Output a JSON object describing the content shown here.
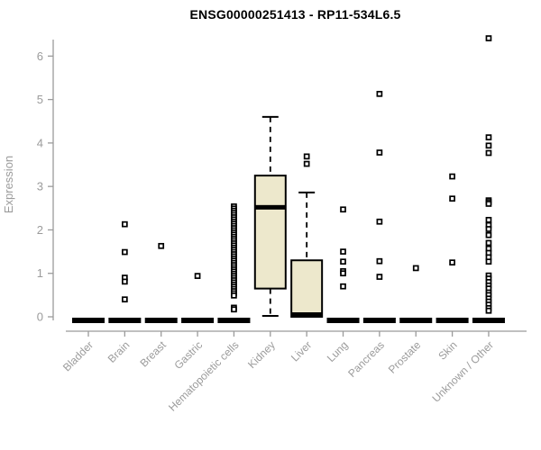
{
  "style": {
    "box_fill": "#EDE8CC",
    "axis_color": "#9B9B9B",
    "line_color": "#000000",
    "background": "#FFFFFF"
  },
  "chart_data": {
    "type": "boxplot",
    "title": "ENSG00000251413 - RP11-534L6.5",
    "xlabel": "",
    "ylabel": "Expression",
    "ylim": [
      0,
      6.5
    ],
    "yticks": [
      0,
      1,
      2,
      3,
      4,
      5,
      6
    ],
    "grid": false,
    "legend": "none",
    "categories": [
      "Bladder",
      "Brain",
      "Breast",
      "Gastric",
      "Hematopoietic cells",
      "Kidney",
      "Liver",
      "Lung",
      "Pancreas",
      "Prostate",
      "Skin",
      "Unknown / Other"
    ],
    "series": [
      {
        "name": "Bladder",
        "q1": 0,
        "median": 0,
        "q3": 0,
        "whisker_low": 0,
        "whisker_high": 0,
        "outliers": []
      },
      {
        "name": "Brain",
        "q1": 0,
        "median": 0,
        "q3": 0,
        "whisker_low": 0,
        "whisker_high": 0,
        "outliers": [
          2.13,
          1.49,
          0.9,
          0.81,
          0.4
        ]
      },
      {
        "name": "Breast",
        "q1": 0,
        "median": 0,
        "q3": 0,
        "whisker_low": 0,
        "whisker_high": 0,
        "outliers": [
          1.63
        ]
      },
      {
        "name": "Gastric",
        "q1": 0,
        "median": 0,
        "q3": 0,
        "whisker_low": 0,
        "whisker_high": 0,
        "outliers": [
          0.94
        ]
      },
      {
        "name": "Hematopoietic cells",
        "q1": 0,
        "median": 0,
        "q3": 0,
        "whisker_low": 0,
        "whisker_high": 0,
        "outliers": [
          2.54,
          2.49,
          2.44,
          2.39,
          2.34,
          2.29,
          2.24,
          2.19,
          2.14,
          2.09,
          2.04,
          1.99,
          1.94,
          1.89,
          1.84,
          1.79,
          1.74,
          1.69,
          1.64,
          1.59,
          1.54,
          1.49,
          1.44,
          1.39,
          1.34,
          1.29,
          1.24,
          1.19,
          1.14,
          1.09,
          1.04,
          0.99,
          0.94,
          0.89,
          0.84,
          0.79,
          0.74,
          0.69,
          0.64,
          0.59,
          0.54,
          0.49,
          0.21,
          0.17
        ]
      },
      {
        "name": "Kidney",
        "q1": 0.65,
        "median": 2.52,
        "q3": 3.25,
        "whisker_low": 0.02,
        "whisker_high": 4.6,
        "outliers": []
      },
      {
        "name": "Liver",
        "q1": 0,
        "median": 0.03,
        "q3": 1.3,
        "whisker_low": 0,
        "whisker_high": 2.86,
        "outliers": [
          3.69,
          3.52
        ]
      },
      {
        "name": "Lung",
        "q1": 0,
        "median": 0,
        "q3": 0,
        "whisker_low": 0,
        "whisker_high": 0,
        "outliers": [
          2.47,
          1.5,
          1.27,
          1.05,
          1.0,
          0.7
        ]
      },
      {
        "name": "Pancreas",
        "q1": 0,
        "median": 0,
        "q3": 0,
        "whisker_low": 0,
        "whisker_high": 0,
        "outliers": [
          5.13,
          3.78,
          2.19,
          1.28,
          0.92
        ]
      },
      {
        "name": "Prostate",
        "q1": 0,
        "median": 0,
        "q3": 0,
        "whisker_low": 0,
        "whisker_high": 0,
        "outliers": [
          1.12
        ]
      },
      {
        "name": "Skin",
        "q1": 0,
        "median": 0,
        "q3": 0,
        "whisker_low": 0,
        "whisker_high": 0,
        "outliers": [
          3.23,
          2.72,
          1.25
        ]
      },
      {
        "name": "Unknown / Other",
        "q1": 0,
        "median": 0,
        "q3": 0,
        "whisker_low": 0,
        "whisker_high": 0,
        "outliers": [
          6.41,
          4.13,
          3.94,
          3.77,
          2.68,
          2.64,
          2.6,
          2.23,
          2.11,
          2.02,
          1.88,
          1.7,
          1.57,
          1.47,
          1.37,
          1.27,
          0.95,
          0.88,
          0.8,
          0.72,
          0.65,
          0.56,
          0.5,
          0.42,
          0.35,
          0.28,
          0.2,
          0.14
        ]
      }
    ]
  }
}
